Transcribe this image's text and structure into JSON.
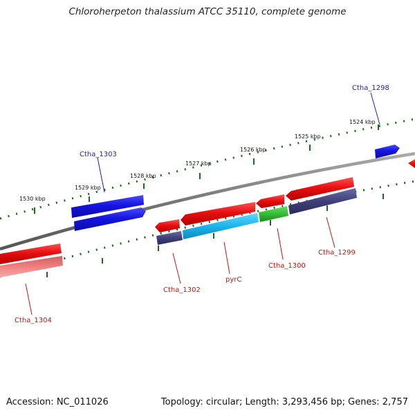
{
  "title": "Chloroherpeton thalassium ATCC 35110, complete genome",
  "footer": {
    "accession": "Accession: NC_011026",
    "summary": "Topology: circular; Length: 3,293,456 bp; Genes: 2,757"
  },
  "tick_labels": [
    "1524 kbp",
    "1525 kbp",
    "1526 kbp",
    "1527 kbp",
    "1528 kbp",
    "1529 kbp",
    "1530 kbp"
  ],
  "gene_labels": [
    "Ctha_1298",
    "Ctha_1303",
    "Ctha_1299",
    "Ctha_1300",
    "pyrC",
    "Ctha_1302",
    "Ctha_1304"
  ],
  "colors": {
    "forward_strand": "#1515e0",
    "reverse_strand": "#e81010",
    "pyrC": "#1cb4ec",
    "Ctha_1300": "#33bb33",
    "dark_feature": "#40407a",
    "pink_feature": "#f08080",
    "backbone": "#777777",
    "tick": "#1a6b1a",
    "label_blue": "#1a1acc",
    "label_red": "#cc1111"
  }
}
